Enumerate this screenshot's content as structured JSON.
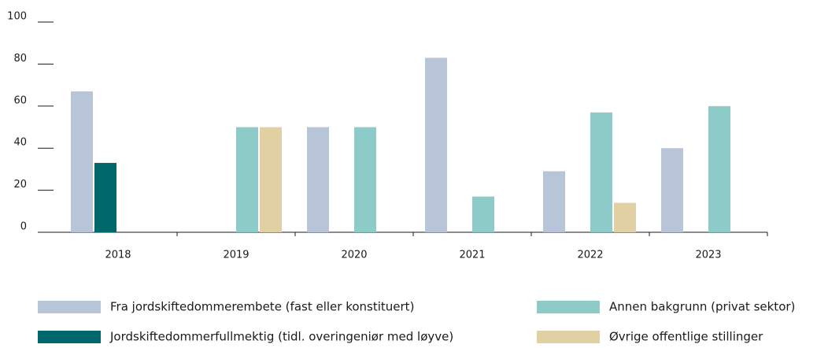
{
  "chart_data": {
    "type": "bar",
    "categories": [
      "2018",
      "2019",
      "2020",
      "2021",
      "2022",
      "2023"
    ],
    "series": [
      {
        "name": "Fra jordskiftedommerembete (fast eller konstituert)",
        "color": "#b8c5d9",
        "values": [
          67,
          0,
          50,
          83,
          29,
          40
        ]
      },
      {
        "name": "Jordskiftedommerfullmektig (tidl. overingeniør med løyve)",
        "color": "#00686a",
        "values": [
          33,
          0,
          0,
          0,
          0,
          0
        ]
      },
      {
        "name": "Annen bakgrunn (privat sektor)",
        "color": "#8ccbc8",
        "values": [
          0,
          50,
          50,
          17,
          57,
          60
        ]
      },
      {
        "name": "Øvrige offentlige stillinger",
        "color": "#e0d0a4",
        "values": [
          0,
          50,
          0,
          0,
          14,
          0
        ]
      }
    ],
    "ylim": [
      0,
      100
    ],
    "yticks": [
      0,
      20,
      40,
      60,
      80,
      100
    ],
    "grid": false
  }
}
